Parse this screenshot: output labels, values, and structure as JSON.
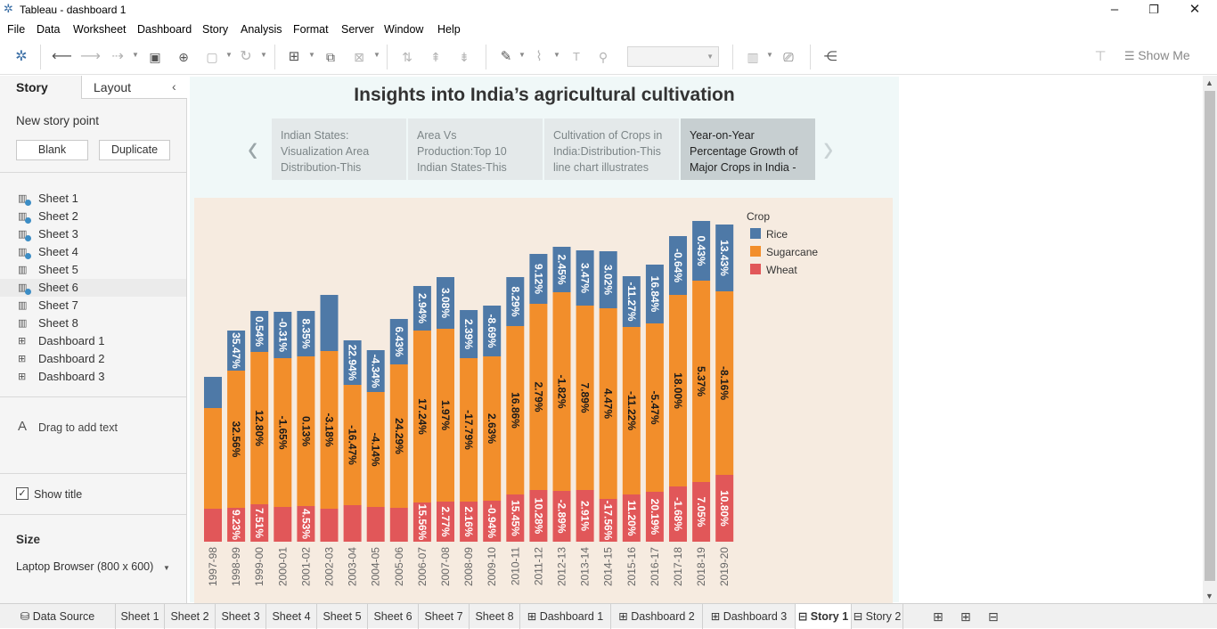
{
  "window": {
    "title": "Tableau - dashboard 1",
    "app_icon": "tableau-logo-icon"
  },
  "menu": [
    "File",
    "Data",
    "Worksheet",
    "Dashboard",
    "Story",
    "Analysis",
    "Format",
    "Server",
    "Window",
    "Help"
  ],
  "toolbar": {
    "show_me": "Show Me",
    "fit_value": ""
  },
  "sidebar": {
    "tabs": [
      "Story",
      "Layout"
    ],
    "new_story_point": "New story point",
    "blank_btn": "Blank",
    "duplicate_btn": "Duplicate",
    "sheets": [
      {
        "label": "Sheet 1",
        "type": "sheet",
        "used": true
      },
      {
        "label": "Sheet 2",
        "type": "sheet",
        "used": true
      },
      {
        "label": "Sheet 3",
        "type": "sheet",
        "used": true
      },
      {
        "label": "Sheet 4",
        "type": "sheet",
        "used": true
      },
      {
        "label": "Sheet 5",
        "type": "sheet",
        "used": false
      },
      {
        "label": "Sheet 6",
        "type": "sheet",
        "used": true,
        "selected": true
      },
      {
        "label": "Sheet 7",
        "type": "sheet",
        "used": false
      },
      {
        "label": "Sheet 8",
        "type": "sheet",
        "used": false
      },
      {
        "label": "Dashboard 1",
        "type": "dashboard",
        "used": false
      },
      {
        "label": "Dashboard 2",
        "type": "dashboard",
        "used": false
      },
      {
        "label": "Dashboard 3",
        "type": "dashboard",
        "used": false
      }
    ],
    "drag_text": "Drag to add text",
    "show_title": "Show title",
    "show_title_checked": true,
    "size_header": "Size",
    "size_value": "Laptop Browser (800 x 600)"
  },
  "story": {
    "title": "Insights into India’s agricultural cultivation",
    "points": [
      {
        "lines": [
          "Indian States:",
          "Visualization Area",
          "Distribution-This"
        ],
        "active": false
      },
      {
        "lines": [
          "Area Vs",
          "Production:Top 10",
          "Indian States-This"
        ],
        "active": false
      },
      {
        "lines": [
          "Cultivation of Crops in",
          "India:Distribution-This",
          "line chart illustrates"
        ],
        "active": false
      },
      {
        "lines": [
          "Year-on-Year",
          "Percentage Growth of",
          "Major Crops in India -"
        ],
        "active": true
      }
    ]
  },
  "chart_data": {
    "type": "bar",
    "stacked": true,
    "orientation": "vertical",
    "categories": [
      "1997-98",
      "1998-99",
      "1999-00",
      "2000-01",
      "2001-02",
      "2002-03",
      "2003-04",
      "2004-05",
      "2005-06",
      "2006-07",
      "2007-08",
      "2008-09",
      "2009-10",
      "2010-11",
      "2011-12",
      "2012-13",
      "2013-14",
      "2014-15",
      "2015-16",
      "2016-17",
      "2017-18",
      "2018-19",
      "2019-20"
    ],
    "series": [
      {
        "name": "Wheat",
        "color": "#e15759",
        "values": [
          37,
          38,
          42,
          39,
          40,
          37,
          41,
          39,
          38,
          44,
          45,
          45,
          46,
          53,
          58,
          57,
          58,
          48,
          53,
          56,
          62,
          67,
          75
        ],
        "labels": [
          "",
          "9.23%",
          "7.51%",
          "",
          "4.53%",
          "",
          "",
          "",
          "",
          "15.56%",
          "2.77%",
          "2.16%",
          "-0.94%",
          "15.45%",
          "10.28%",
          "-2.89%",
          "2.91%",
          "-17.56%",
          "11.20%",
          "20.19%",
          "-1.68%",
          "7.05%",
          "10.80%"
        ]
      },
      {
        "name": "Sugarcane",
        "color": "#f28e2b",
        "values": [
          113,
          154,
          171,
          167,
          168,
          177,
          135,
          129,
          161,
          193,
          194,
          161,
          162,
          189,
          209,
          223,
          207,
          214,
          188,
          189,
          215,
          226,
          206
        ],
        "labels": [
          "",
          "32.56%",
          "12.80%",
          "-1.65%",
          "0.13%",
          "-3.18%",
          "-16.47%",
          "-4.14%",
          "24.29%",
          "17.24%",
          "1.97%",
          "-17.79%",
          "2.63%",
          "16.86%",
          "2.79%",
          "-1.82%",
          "7.89%",
          "4.47%",
          "-11.22%",
          "-5.47%",
          "18.00%",
          "5.37%",
          "-8.16%"
        ]
      },
      {
        "name": "Rice",
        "color": "#4e79a7",
        "values": [
          35,
          45,
          46,
          52,
          51,
          63,
          50,
          47,
          51,
          50,
          58,
          54,
          57,
          55,
          56,
          51,
          62,
          64,
          57,
          66,
          66,
          67,
          75
        ],
        "labels": [
          "",
          "35.47%",
          "0.54%",
          "-0.31%",
          "8.35%",
          "",
          "22.94%",
          "-4.34%",
          "6.43%",
          "2.94%",
          "3.08%",
          "2.39%",
          "-8.69%",
          "8.29%",
          "9.12%",
          "2.45%",
          "3.47%",
          "3.02%",
          "-11.27%",
          "16.84%",
          "-0.64%",
          "0.43%",
          "13.43%"
        ]
      }
    ],
    "legend": {
      "title": "Crop",
      "items": [
        "Rice",
        "Sugarcane",
        "Wheat"
      ],
      "colors": [
        "#4e79a7",
        "#f28e2b",
        "#e15759"
      ],
      "placement": "top-right"
    },
    "title": "",
    "xlabel": "",
    "ylabel": "",
    "grid": false,
    "ylim": [
      0,
      360
    ]
  },
  "bottom_tabs": [
    {
      "label": "Data Source",
      "kind": "datasource"
    },
    {
      "label": "Sheet 1",
      "kind": "sheet"
    },
    {
      "label": "Sheet 2",
      "kind": "sheet"
    },
    {
      "label": "Sheet 3",
      "kind": "sheet"
    },
    {
      "label": "Sheet 4",
      "kind": "sheet"
    },
    {
      "label": "Sheet 5",
      "kind": "sheet"
    },
    {
      "label": "Sheet 6",
      "kind": "sheet"
    },
    {
      "label": "Sheet 7",
      "kind": "sheet"
    },
    {
      "label": "Sheet 8",
      "kind": "sheet"
    },
    {
      "label": "Dashboard 1",
      "kind": "dashboard"
    },
    {
      "label": "Dashboard 2",
      "kind": "dashboard"
    },
    {
      "label": "Dashboard 3",
      "kind": "dashboard"
    },
    {
      "label": "Story 1",
      "kind": "story",
      "active": true
    },
    {
      "label": "Story 2",
      "kind": "story"
    }
  ]
}
